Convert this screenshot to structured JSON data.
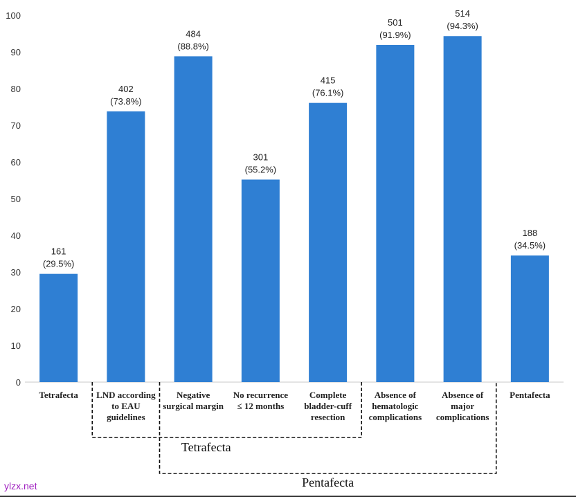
{
  "chart_data": {
    "type": "bar",
    "title": "",
    "xlabel": "",
    "ylabel": "",
    "ylim": [
      0,
      100
    ],
    "yticks": [
      0,
      10,
      20,
      30,
      40,
      50,
      60,
      70,
      80,
      90,
      100
    ],
    "grid": false,
    "legend": "none",
    "bar_color": "#2f7fd3",
    "categories": [
      [
        "Tetrafecta"
      ],
      [
        "LND according",
        "to EAU",
        "guidelines"
      ],
      [
        "Negative",
        "surgical margin"
      ],
      [
        "No recurrence",
        "≤ 12 months"
      ],
      [
        "Complete",
        "bladder-cuff",
        "resection"
      ],
      [
        "Absence of",
        "hematologic",
        "complications"
      ],
      [
        "Absence of",
        "major",
        "complications"
      ],
      [
        "Pentafecta"
      ]
    ],
    "values": [
      29.5,
      73.8,
      88.8,
      55.2,
      76.1,
      91.9,
      94.3,
      34.5
    ],
    "counts": [
      "161",
      "402",
      "484",
      "301",
      "415",
      "501",
      "514",
      "188"
    ],
    "percent_labels": [
      "(29.5%)",
      "(73.8%)",
      "(88.8%)",
      "(55.2%)",
      "(76.1%)",
      "(91.9%)",
      "(94.3%)",
      "(34.5%)"
    ],
    "brackets": [
      {
        "label": "Tetrafecta",
        "from_category": 1,
        "to_category": 4
      },
      {
        "label": "Pentafecta",
        "from_category": 2,
        "to_category": 6
      }
    ]
  },
  "watermark": "ylzx.net"
}
